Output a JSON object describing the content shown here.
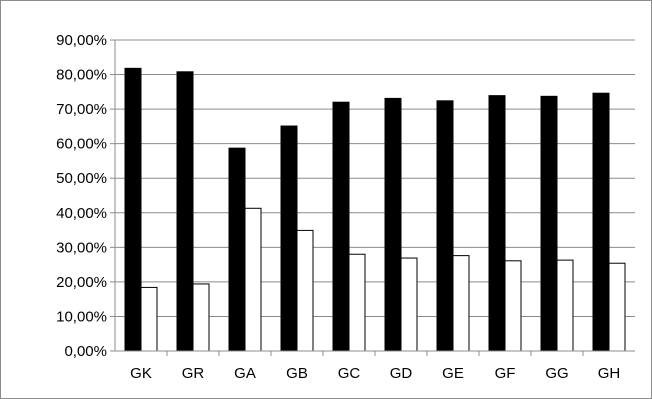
{
  "chart_data": {
    "type": "bar",
    "categories": [
      "GK",
      "GR",
      "GA",
      "GB",
      "GC",
      "GD",
      "GE",
      "GF",
      "GG",
      "GH"
    ],
    "series": [
      {
        "values": [
          81.8,
          80.8,
          58.7,
          65.1,
          72.0,
          73.1,
          72.4,
          73.9,
          73.7,
          74.6
        ],
        "color": "#000000"
      },
      {
        "values": [
          18.4,
          19.4,
          41.3,
          34.9,
          28.0,
          26.9,
          27.6,
          26.1,
          26.3,
          25.4
        ],
        "color": "#ffffff"
      }
    ],
    "y_ticks": [
      "0,00%",
      "10,00%",
      "20,00%",
      "30,00%",
      "40,00%",
      "50,00%",
      "60,00%",
      "70,00%",
      "80,00%",
      "90,00%"
    ],
    "ylim": [
      0,
      90
    ],
    "grid": true,
    "title": "",
    "xlabel": "",
    "ylabel": ""
  }
}
